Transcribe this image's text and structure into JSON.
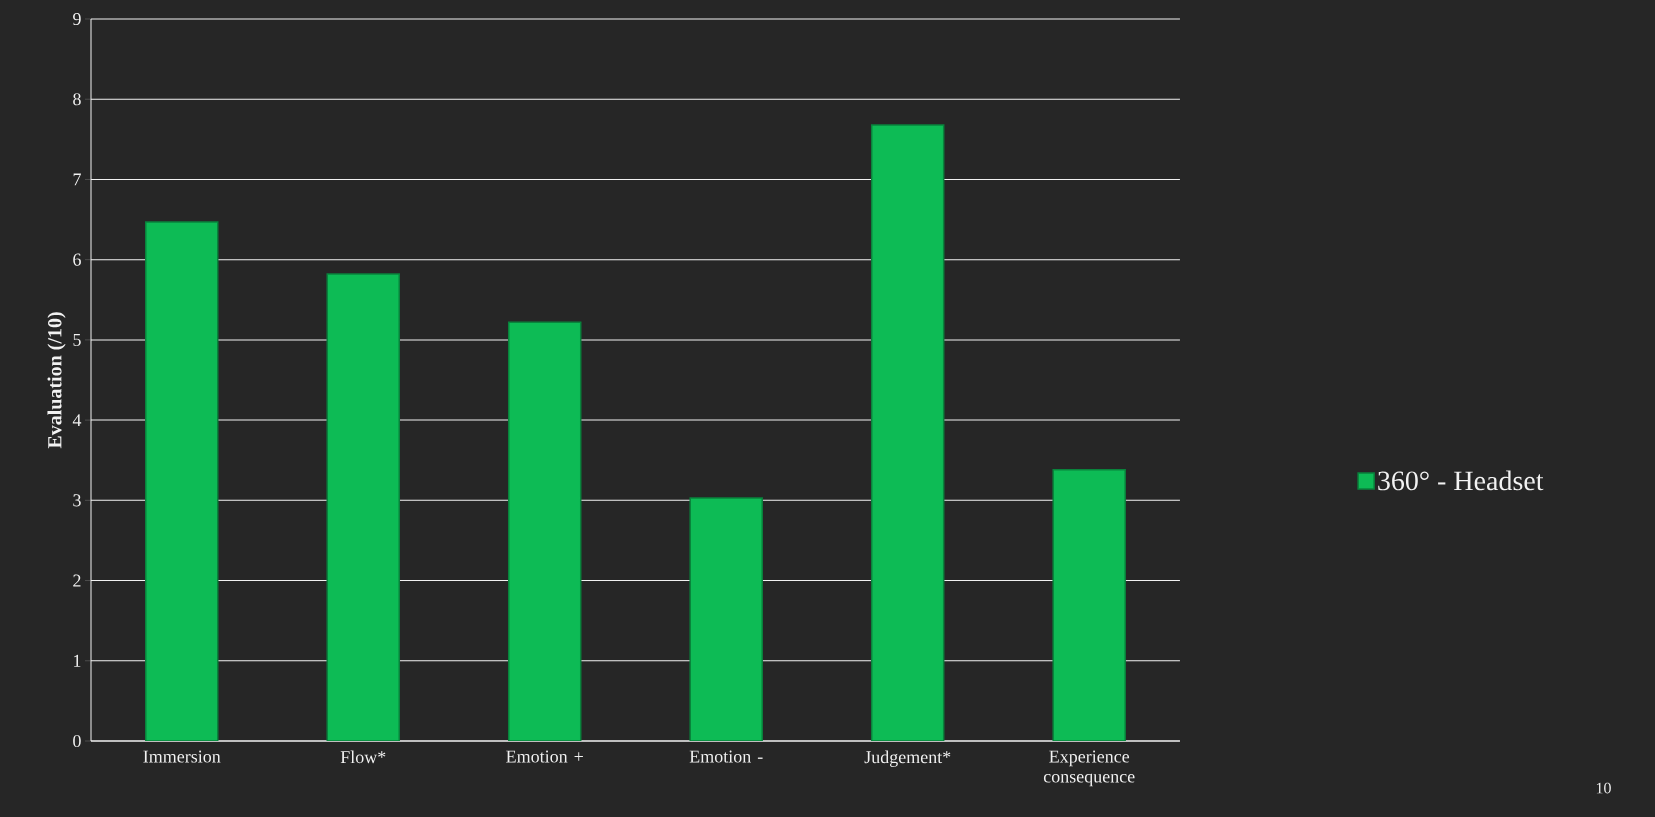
{
  "chart_data": {
    "type": "bar",
    "ylabel": "Evaluation (/10)",
    "categories": [
      "Immersion",
      "Flow*",
      "Emotion +",
      "Emotion -",
      "Judgement*",
      "Experience consequence"
    ],
    "series": [
      {
        "name": "360° - Headset",
        "color": "#0dbb55",
        "values": [
          6.47,
          5.82,
          5.22,
          3.03,
          7.68,
          3.38
        ]
      }
    ],
    "ylim": [
      0,
      9
    ],
    "yticks": [
      0,
      1,
      2,
      3,
      4,
      5,
      6,
      7,
      8,
      9
    ],
    "grid": "y",
    "legend": "right",
    "annotations": [
      "10"
    ]
  }
}
